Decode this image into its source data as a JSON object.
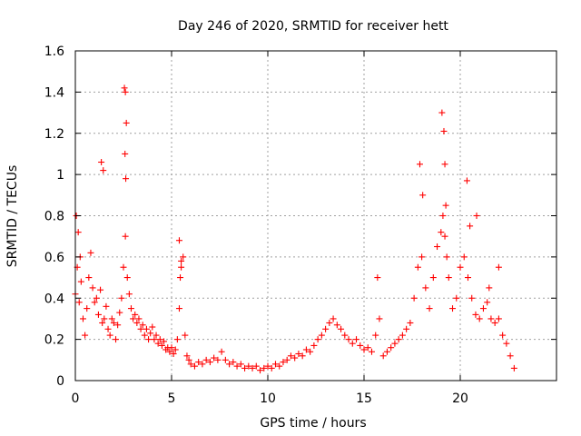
{
  "chart_data": {
    "type": "scatter",
    "title": "Day 246 of 2020, SRMTID for receiver hett",
    "xlabel": "GPS time / hours",
    "ylabel": "SRMTID / TECUs",
    "xlim": [
      0,
      25
    ],
    "ylim": [
      0,
      1.6
    ],
    "xticks": [
      0,
      5,
      10,
      15,
      20
    ],
    "xtick_labels": [
      "0",
      "5",
      "10",
      "15",
      "20"
    ],
    "yticks": [
      0,
      0.2,
      0.4,
      0.6,
      0.8,
      1,
      1.2,
      1.4,
      1.6
    ],
    "ytick_labels": [
      "0",
      "0.2",
      "0.4",
      "0.6",
      "0.8",
      "1",
      "1.2",
      "1.4",
      "1.6"
    ],
    "grid": true,
    "marker": "+",
    "color": "#ff0000",
    "series": [
      {
        "name": "SRMTID",
        "x": [
          0.0,
          0.1,
          0.2,
          0.3,
          0.4,
          0.5,
          0.6,
          0.7,
          0.8,
          0.9,
          1.0,
          1.1,
          1.2,
          1.3,
          1.4,
          1.5,
          1.6,
          1.7,
          1.8,
          1.9,
          2.0,
          2.1,
          2.2,
          2.3,
          2.4,
          2.5,
          2.6,
          2.7,
          2.8,
          2.9,
          3.0,
          3.1,
          3.2,
          3.3,
          3.4,
          3.5,
          3.6,
          3.7,
          3.8,
          3.9,
          4.0,
          4.1,
          4.2,
          4.3,
          4.4,
          4.5,
          4.6,
          4.7,
          4.8,
          4.9,
          5.0,
          5.1,
          5.2,
          5.3,
          5.4,
          5.5,
          5.6,
          5.7,
          5.8,
          5.9,
          6.0,
          6.2,
          6.4,
          6.6,
          6.8,
          7.0,
          7.2,
          7.4,
          7.6,
          7.8,
          8.0,
          8.2,
          8.4,
          8.6,
          8.8,
          9.0,
          9.2,
          9.4,
          9.6,
          9.8,
          10.0,
          10.2,
          10.4,
          10.6,
          10.8,
          11.0,
          11.2,
          11.4,
          11.6,
          11.8,
          12.0,
          12.2,
          12.4,
          12.6,
          12.8,
          13.0,
          13.2,
          13.4,
          13.6,
          13.8,
          14.0,
          14.2,
          14.4,
          14.6,
          14.8,
          15.0,
          15.2,
          15.4,
          15.6,
          15.8,
          16.0,
          16.2,
          16.4,
          16.6,
          16.8,
          17.0,
          17.2,
          17.4,
          17.6,
          17.8,
          18.0,
          18.2,
          18.4,
          18.6,
          18.8,
          19.0,
          19.1,
          19.2,
          19.3,
          19.4,
          19.6,
          19.8,
          20.0,
          20.2,
          20.4,
          20.6,
          20.8,
          21.0,
          21.2,
          21.4,
          21.6,
          21.8,
          22.0,
          22.2,
          22.4,
          22.6,
          22.8,
          0.05,
          0.15,
          0.25,
          1.35,
          1.45,
          2.55,
          2.6,
          2.65,
          2.58,
          2.62,
          5.4,
          5.5,
          5.45,
          15.7,
          17.9,
          18.05,
          19.05,
          19.15,
          19.2,
          19.25,
          20.35,
          20.5,
          20.85,
          21.5,
          22.0
        ],
        "y": [
          0.42,
          0.55,
          0.38,
          0.48,
          0.3,
          0.22,
          0.35,
          0.5,
          0.62,
          0.45,
          0.38,
          0.4,
          0.32,
          0.44,
          0.28,
          0.3,
          0.36,
          0.25,
          0.22,
          0.3,
          0.28,
          0.2,
          0.27,
          0.33,
          0.4,
          0.55,
          0.7,
          0.5,
          0.42,
          0.35,
          0.3,
          0.32,
          0.28,
          0.3,
          0.25,
          0.27,
          0.22,
          0.25,
          0.2,
          0.23,
          0.26,
          0.2,
          0.22,
          0.18,
          0.2,
          0.17,
          0.19,
          0.15,
          0.16,
          0.14,
          0.16,
          0.13,
          0.15,
          0.2,
          0.35,
          0.55,
          0.6,
          0.22,
          0.12,
          0.1,
          0.08,
          0.07,
          0.09,
          0.08,
          0.1,
          0.09,
          0.11,
          0.1,
          0.14,
          0.1,
          0.08,
          0.09,
          0.07,
          0.08,
          0.06,
          0.07,
          0.06,
          0.07,
          0.05,
          0.06,
          0.07,
          0.06,
          0.08,
          0.07,
          0.09,
          0.1,
          0.12,
          0.11,
          0.13,
          0.12,
          0.15,
          0.14,
          0.17,
          0.2,
          0.22,
          0.25,
          0.28,
          0.3,
          0.27,
          0.25,
          0.22,
          0.2,
          0.18,
          0.2,
          0.17,
          0.15,
          0.16,
          0.14,
          0.22,
          0.3,
          0.12,
          0.14,
          0.16,
          0.18,
          0.2,
          0.22,
          0.25,
          0.28,
          0.4,
          0.55,
          0.6,
          0.45,
          0.35,
          0.5,
          0.65,
          0.72,
          0.8,
          0.7,
          0.6,
          0.5,
          0.35,
          0.4,
          0.55,
          0.6,
          0.5,
          0.4,
          0.32,
          0.3,
          0.35,
          0.38,
          0.3,
          0.28,
          0.3,
          0.22,
          0.18,
          0.12,
          0.06,
          0.8,
          0.72,
          0.6,
          1.06,
          1.02,
          1.42,
          1.4,
          1.25,
          1.1,
          0.98,
          0.68,
          0.58,
          0.5,
          0.5,
          1.05,
          0.9,
          1.3,
          1.21,
          1.05,
          0.85,
          0.97,
          0.75,
          0.8,
          0.45,
          0.55
        ]
      }
    ]
  }
}
